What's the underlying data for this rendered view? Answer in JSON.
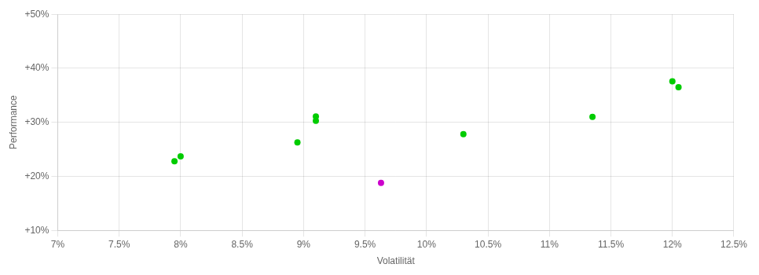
{
  "chart_data": {
    "type": "scatter",
    "xlabel": "Volatilität",
    "ylabel": "Performance",
    "xlim": [
      0.07,
      0.125
    ],
    "ylim": [
      0.1,
      0.5
    ],
    "xticks": [
      {
        "value": 0.07,
        "label": "7%"
      },
      {
        "value": 0.075,
        "label": "7.5%"
      },
      {
        "value": 0.08,
        "label": "8%"
      },
      {
        "value": 0.085,
        "label": "8.5%"
      },
      {
        "value": 0.09,
        "label": "9%"
      },
      {
        "value": 0.095,
        "label": "9.5%"
      },
      {
        "value": 0.1,
        "label": "10%"
      },
      {
        "value": 0.105,
        "label": "10.5%"
      },
      {
        "value": 0.11,
        "label": "11%"
      },
      {
        "value": 0.115,
        "label": "11.5%"
      },
      {
        "value": 0.12,
        "label": "12%"
      },
      {
        "value": 0.125,
        "label": "12.5%"
      }
    ],
    "yticks": [
      {
        "value": 0.1,
        "label": "+10%"
      },
      {
        "value": 0.2,
        "label": "+20%"
      },
      {
        "value": 0.3,
        "label": "+30%"
      },
      {
        "value": 0.4,
        "label": "+40%"
      },
      {
        "value": 0.5,
        "label": "+50%"
      }
    ],
    "grid": true,
    "series": [
      {
        "color": "#00cc00",
        "x": [
          0.08,
          0.0795,
          0.0895,
          0.091,
          0.091,
          0.103,
          0.1135,
          0.12,
          0.1205
        ],
        "values": [
          0.237,
          0.228,
          0.263,
          0.311,
          0.303,
          0.278,
          0.31,
          0.376,
          0.365
        ]
      },
      {
        "color": "#cc00cc",
        "x": [
          0.0963
        ],
        "values": [
          0.188
        ]
      }
    ]
  }
}
